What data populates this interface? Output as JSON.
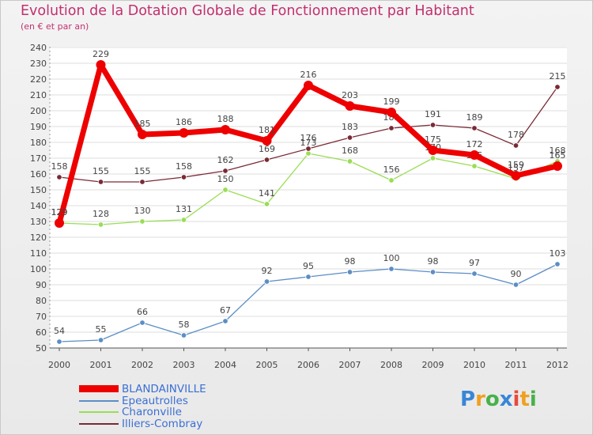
{
  "chart_data": {
    "type": "line",
    "title": "Evolution de la Dotation Globale de Fonctionnement par Habitant",
    "subtitle": "(en € et par an)",
    "categories": [
      "2000",
      "2001",
      "2002",
      "2003",
      "2004",
      "2005",
      "2006",
      "2007",
      "2008",
      "2009",
      "2010",
      "2011",
      "2012"
    ],
    "ylim": [
      50,
      240
    ],
    "yticks": [
      50,
      60,
      70,
      80,
      90,
      100,
      110,
      120,
      130,
      140,
      150,
      160,
      170,
      180,
      190,
      200,
      210,
      220,
      230,
      240
    ],
    "grid": "horizontal",
    "series": [
      {
        "name": "BLANDAINVILLE",
        "color": "#ee0000",
        "values": [
          129,
          229,
          185,
          186,
          188,
          181,
          216,
          203,
          199,
          175,
          172,
          159,
          165
        ]
      },
      {
        "name": "Epeautrolles",
        "color": "#5b8ec5",
        "values": [
          54,
          55,
          66,
          58,
          67,
          92,
          95,
          98,
          100,
          98,
          97,
          90,
          103
        ]
      },
      {
        "name": "Charonville",
        "color": "#99dd55",
        "values": [
          129,
          128,
          130,
          131,
          150,
          141,
          173,
          168,
          156,
          170,
          165,
          157,
          168
        ]
      },
      {
        "name": "Illiers-Combray",
        "color": "#7a2a35",
        "values": [
          158,
          155,
          155,
          158,
          162,
          169,
          176,
          183,
          189,
          191,
          189,
          178,
          215
        ]
      }
    ]
  },
  "legend": {
    "items": [
      {
        "label": "BLANDAINVILLE"
      },
      {
        "label": "Epeautrolles"
      },
      {
        "label": "Charonville"
      },
      {
        "label": "Illiers-Combray"
      }
    ]
  },
  "logo": {
    "letters": [
      "P",
      "r",
      "o",
      "x",
      "i",
      "t",
      "i"
    ],
    "colors": [
      "#3a86d6",
      "#f0a020",
      "#47b14a",
      "#3a86d6",
      "#e84a3a",
      "#f0a020",
      "#47b14a"
    ]
  }
}
